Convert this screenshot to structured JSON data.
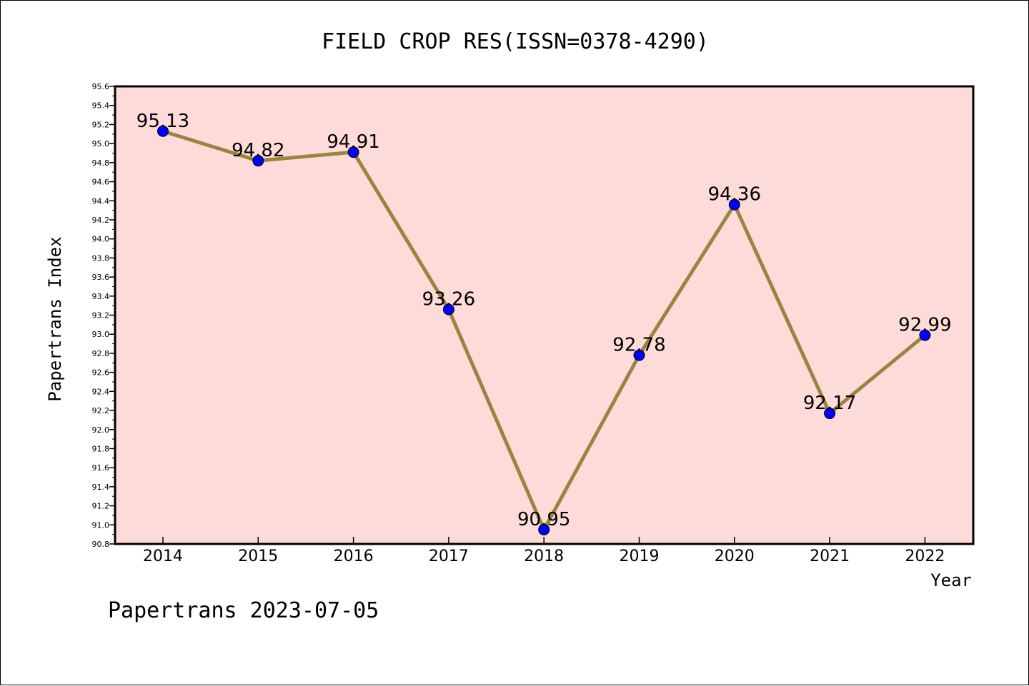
{
  "chart_data": {
    "type": "line",
    "title": "FIELD CROP RES(ISSN=0378-4290)",
    "xlabel": "Year",
    "ylabel": "Papertrans Index",
    "categories": [
      "2014",
      "2015",
      "2016",
      "2017",
      "2018",
      "2019",
      "2020",
      "2021",
      "2022"
    ],
    "series": [
      {
        "values": [
          95.13,
          94.82,
          94.91,
          93.26,
          90.95,
          92.78,
          94.36,
          92.17,
          92.99
        ]
      }
    ],
    "data_labels": [
      "95.13",
      "94.82",
      "94.91",
      "93.26",
      "90.95",
      "92.78",
      "94.36",
      "92.17",
      "92.99"
    ],
    "ylim": [
      90.8,
      95.6
    ],
    "yticks": [
      "90.8",
      "91.0",
      "91.2",
      "91.4",
      "91.6",
      "91.8",
      "92.0",
      "92.2",
      "92.4",
      "92.6",
      "92.8",
      "93.0",
      "93.2",
      "93.4",
      "93.6",
      "93.8",
      "94.0",
      "94.2",
      "94.4",
      "94.6",
      "94.8",
      "95.0",
      "95.2",
      "95.4",
      "95.6"
    ],
    "grid": false,
    "legend": "none",
    "colors": {
      "plot_background": "#fddbd9",
      "line": "#9b8440",
      "marker": "#0000ff"
    },
    "footer": "Papertrans 2023-07-05"
  }
}
